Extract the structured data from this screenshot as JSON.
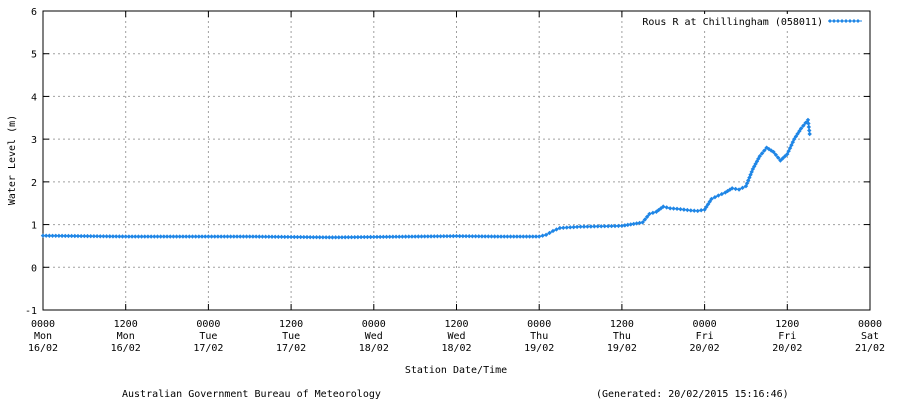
{
  "chart_data": {
    "type": "line",
    "title": "",
    "xlabel": "Station Date/Time",
    "ylabel": "Water Level (m)",
    "ylim": [
      -1,
      6
    ],
    "xlim": [
      "2015-02-16 00:00",
      "2015-02-21 00:00"
    ],
    "grid": true,
    "legend_position": "top-right",
    "yticks": [
      "-1",
      "0",
      "1",
      "2",
      "3",
      "4",
      "5",
      "6"
    ],
    "xticks": [
      [
        "0000",
        "Mon",
        "16/02"
      ],
      [
        "1200",
        "Mon",
        "16/02"
      ],
      [
        "0000",
        "Tue",
        "17/02"
      ],
      [
        "1200",
        "Tue",
        "17/02"
      ],
      [
        "0000",
        "Wed",
        "18/02"
      ],
      [
        "1200",
        "Wed",
        "18/02"
      ],
      [
        "0000",
        "Thu",
        "19/02"
      ],
      [
        "1200",
        "Thu",
        "19/02"
      ],
      [
        "0000",
        "Fri",
        "20/02"
      ],
      [
        "1200",
        "Fri",
        "20/02"
      ],
      [
        "0000",
        "Sat",
        "21/02"
      ]
    ],
    "series": [
      {
        "name": "Rous R at Chillingham (058011)",
        "color": "#1f86e6",
        "x": [
          "2015-02-16 00:00",
          "2015-02-16 06:00",
          "2015-02-16 12:00",
          "2015-02-16 18:00",
          "2015-02-17 00:00",
          "2015-02-17 06:00",
          "2015-02-17 12:00",
          "2015-02-17 18:00",
          "2015-02-18 00:00",
          "2015-02-18 06:00",
          "2015-02-18 12:00",
          "2015-02-18 18:00",
          "2015-02-19 00:00",
          "2015-02-19 01:00",
          "2015-02-19 02:00",
          "2015-02-19 03:00",
          "2015-02-19 04:00",
          "2015-02-19 06:00",
          "2015-02-19 09:00",
          "2015-02-19 12:00",
          "2015-02-19 15:00",
          "2015-02-19 16:00",
          "2015-02-19 17:00",
          "2015-02-19 18:00",
          "2015-02-19 19:00",
          "2015-02-19 20:00",
          "2015-02-19 21:00",
          "2015-02-19 22:00",
          "2015-02-19 23:00",
          "2015-02-20 00:00",
          "2015-02-20 01:00",
          "2015-02-20 02:00",
          "2015-02-20 03:00",
          "2015-02-20 04:00",
          "2015-02-20 05:00",
          "2015-02-20 06:00",
          "2015-02-20 07:00",
          "2015-02-20 08:00",
          "2015-02-20 09:00",
          "2015-02-20 10:00",
          "2015-02-20 11:00",
          "2015-02-20 12:00",
          "2015-02-20 13:00",
          "2015-02-20 14:00",
          "2015-02-20 15:00",
          "2015-02-20 15:15"
        ],
        "y": [
          0.74,
          0.73,
          0.72,
          0.72,
          0.72,
          0.72,
          0.71,
          0.7,
          0.71,
          0.72,
          0.73,
          0.72,
          0.72,
          0.76,
          0.85,
          0.92,
          0.93,
          0.95,
          0.96,
          0.97,
          1.05,
          1.25,
          1.3,
          1.42,
          1.38,
          1.37,
          1.35,
          1.33,
          1.32,
          1.35,
          1.6,
          1.68,
          1.75,
          1.85,
          1.82,
          1.9,
          2.3,
          2.6,
          2.8,
          2.7,
          2.5,
          2.65,
          3.0,
          3.25,
          3.45,
          3.12
        ]
      }
    ]
  },
  "footer": {
    "left": "Australian Government Bureau of Meteorology",
    "right": "(Generated: 20/02/2015 15:16:46)"
  }
}
